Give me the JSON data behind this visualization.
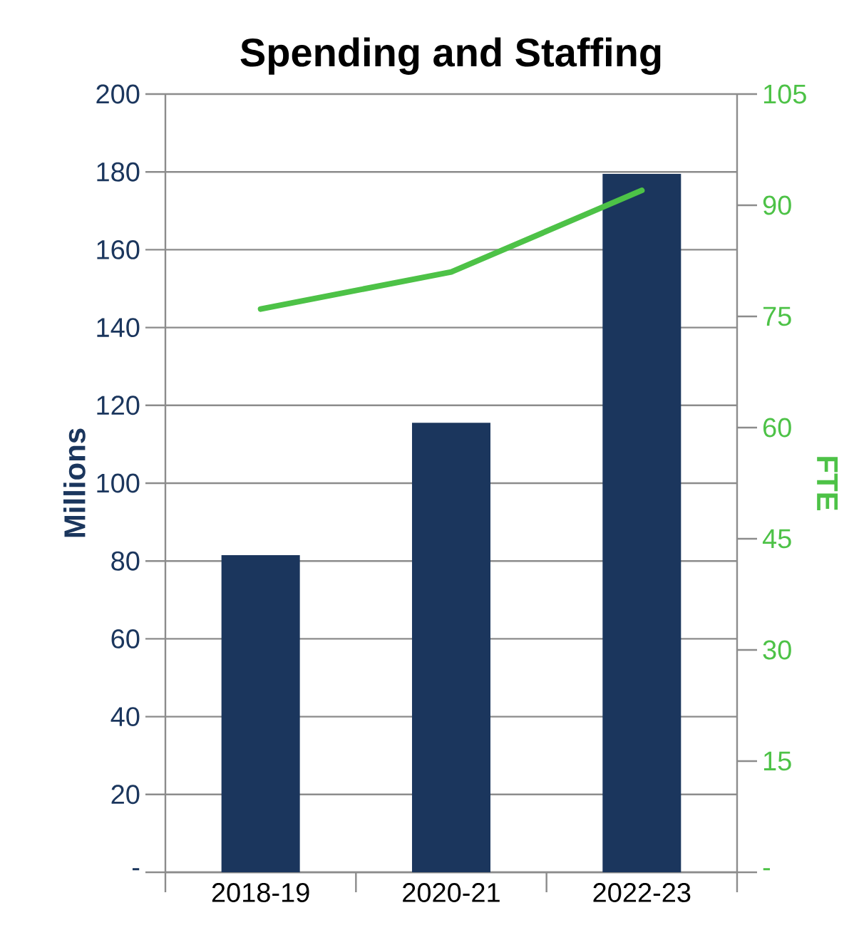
{
  "chart_data": {
    "type": "bar",
    "title": "Spending and Staffing",
    "ylabel": "Millions",
    "y2label": "FTE",
    "categories": [
      "2018-19",
      "2020-21",
      "2022-23"
    ],
    "series": [
      {
        "color": "#1b365d",
        "values": [
          81.5,
          115.5,
          179.5
        ]
      },
      {
        "type": "line",
        "axis": "y2",
        "color": "#4dc247",
        "values": [
          76,
          81,
          92
        ]
      }
    ],
    "ylim": [
      0,
      200
    ],
    "yticks": [
      {
        "value": 0,
        "label": "-"
      },
      20,
      40,
      60,
      80,
      100,
      120,
      140,
      160,
      180,
      200
    ],
    "y2lim": [
      0,
      105
    ],
    "y2ticks": [
      {
        "value": 0,
        "label": "-"
      },
      15,
      30,
      45,
      60,
      75,
      90,
      105
    ],
    "grid": "y"
  }
}
